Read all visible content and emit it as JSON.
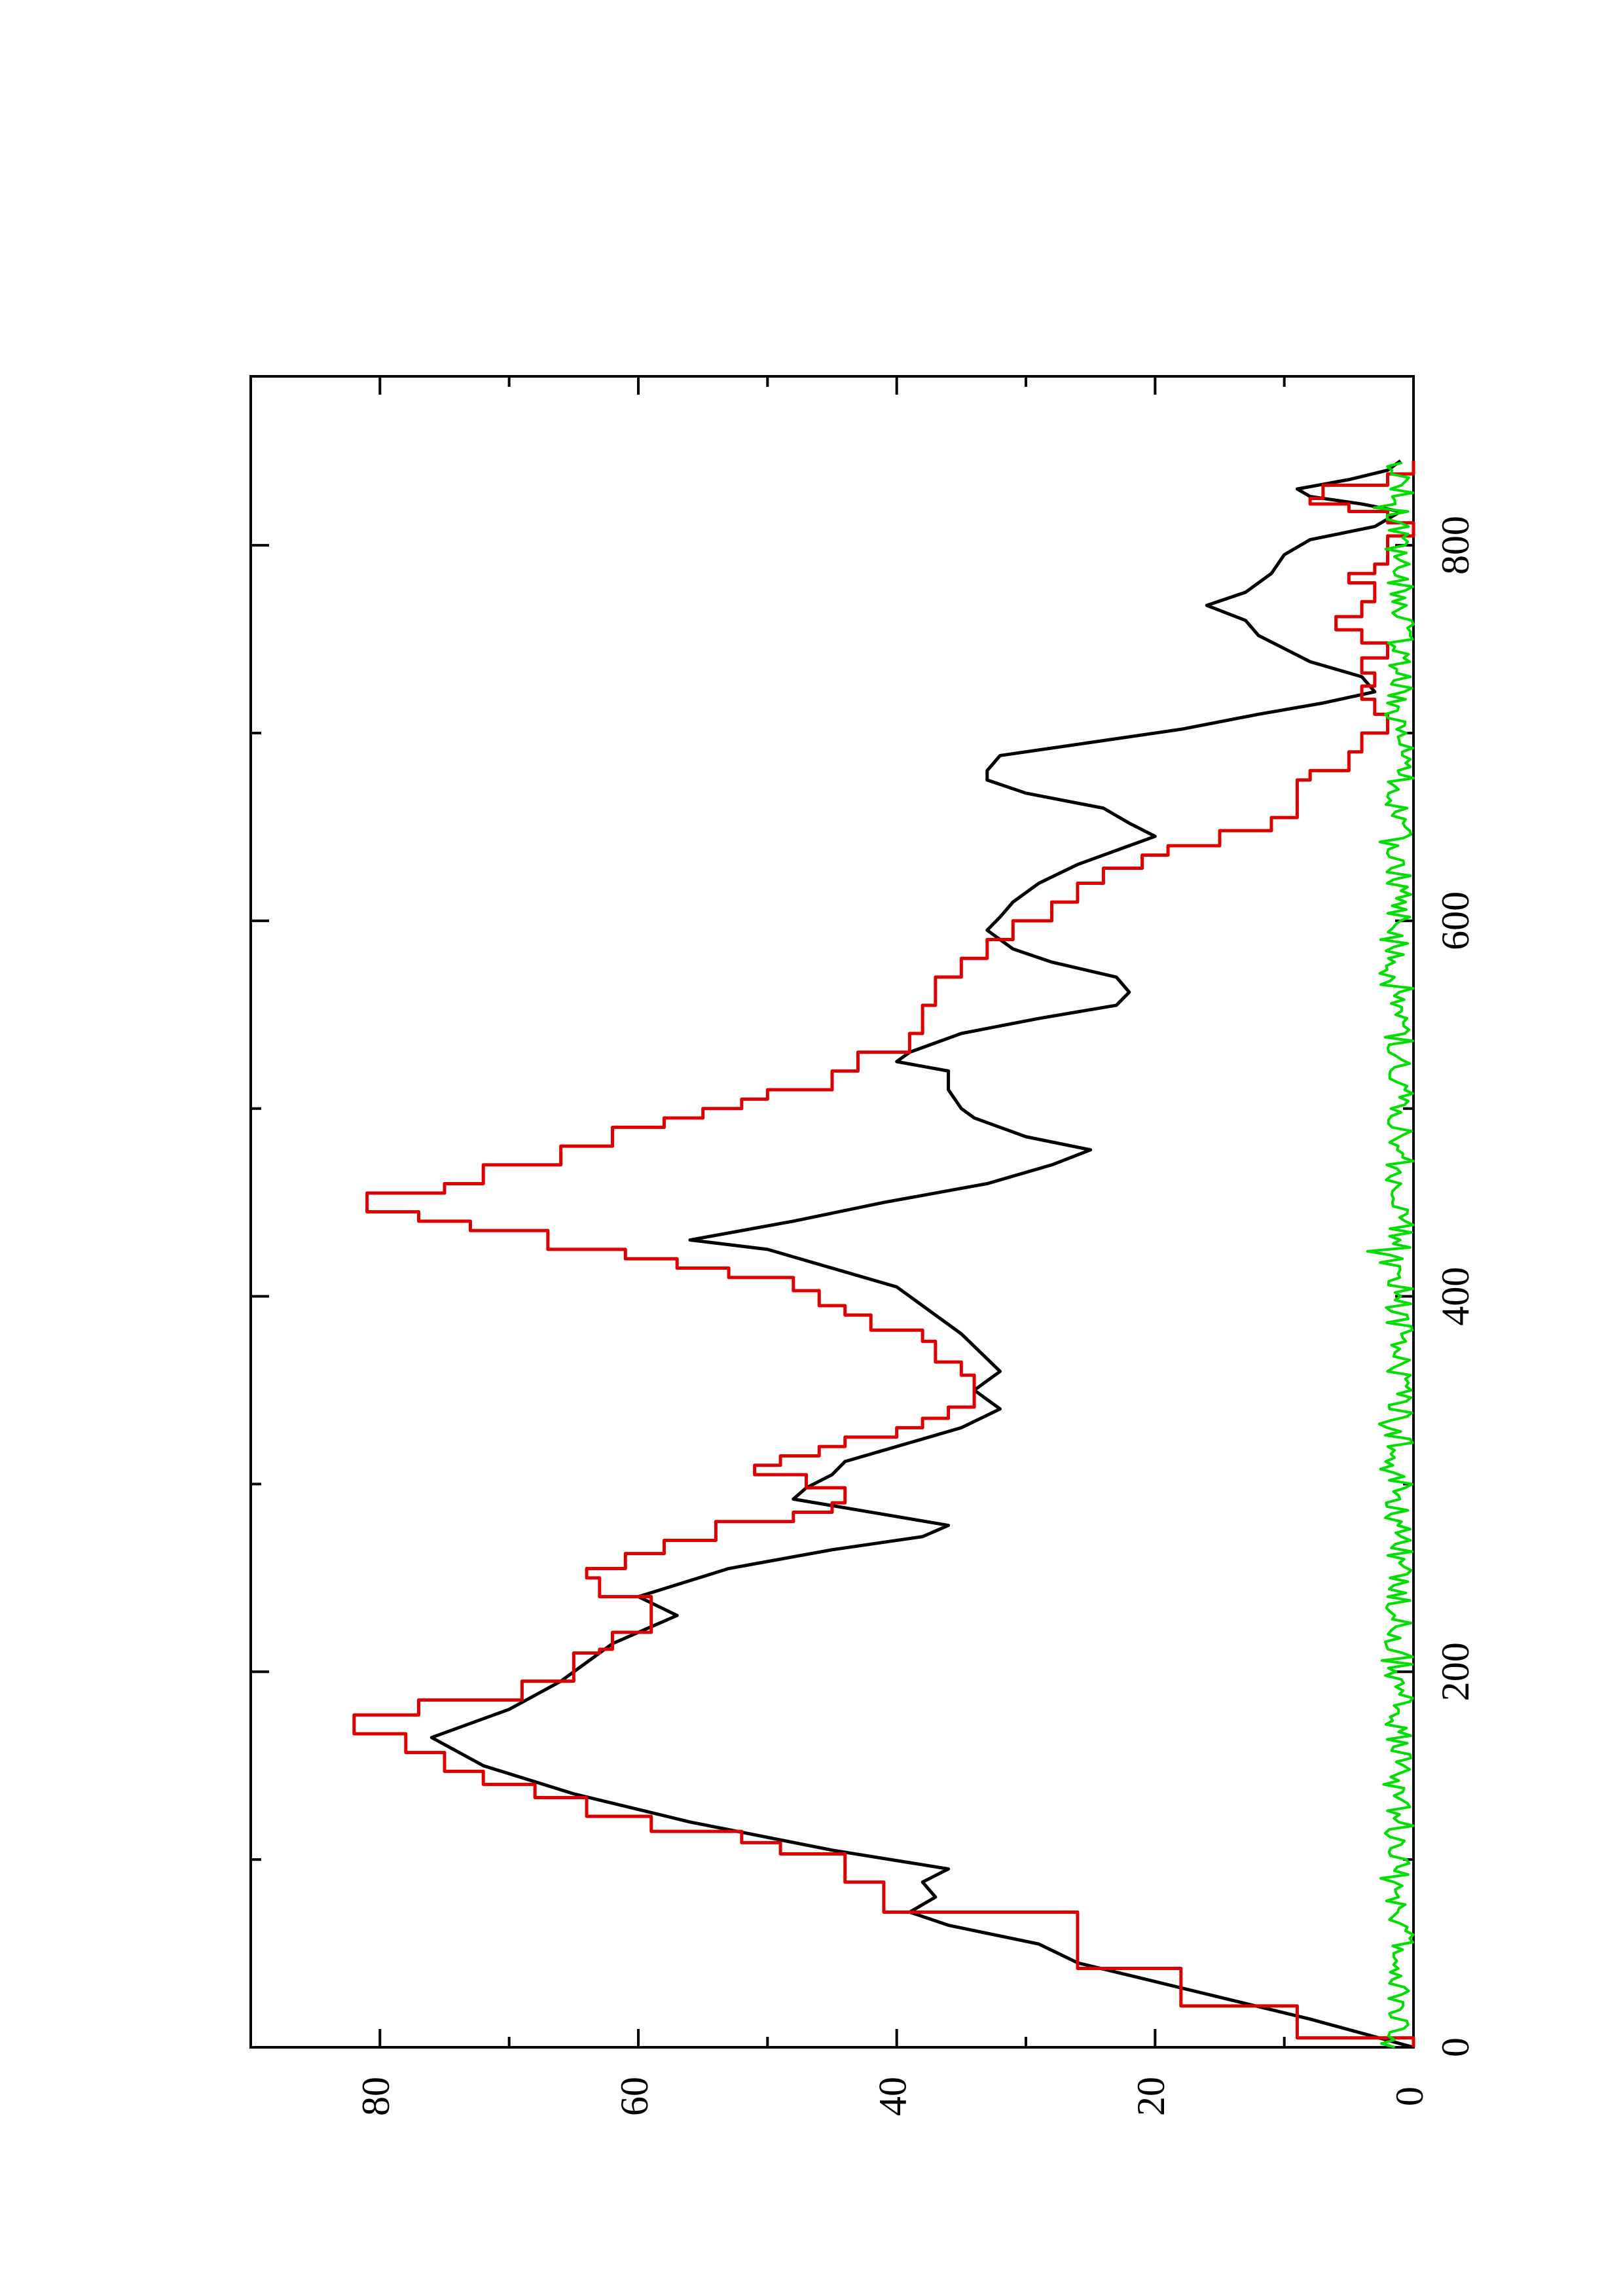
{
  "chart_data": {
    "type": "line",
    "xlabel": "",
    "ylabel": "",
    "xlim": [
      0,
      890
    ],
    "ylim": [
      0,
      90
    ],
    "xticks": [
      0,
      200,
      400,
      600,
      800
    ],
    "yticks": [
      0,
      20,
      40,
      60,
      80
    ],
    "xtick_labels": [
      "0",
      "200",
      "400",
      "600",
      "800"
    ],
    "ytick_labels": [
      "0",
      "20",
      "40",
      "60",
      "80"
    ],
    "grid": false,
    "legend": "none",
    "orientation": "rotated 90° counter-clockwise on the page",
    "colors": {
      "series_1": "#000000",
      "series_2": "#dd0000",
      "series_3": "#00dd00"
    },
    "series": [
      {
        "style": "smooth",
        "color": "#000000",
        "points": [
          [
            0,
            0
          ],
          [
            15,
            8
          ],
          [
            25,
            14
          ],
          [
            35,
            20
          ],
          [
            45,
            26
          ],
          [
            55,
            29
          ],
          [
            65,
            36
          ],
          [
            72,
            39
          ],
          [
            80,
            37
          ],
          [
            88,
            38
          ],
          [
            95,
            36
          ],
          [
            105,
            45
          ],
          [
            120,
            56
          ],
          [
            135,
            65
          ],
          [
            150,
            72
          ],
          [
            165,
            76
          ],
          [
            180,
            70
          ],
          [
            195,
            66
          ],
          [
            205,
            64
          ],
          [
            215,
            62
          ],
          [
            230,
            57
          ],
          [
            240,
            60
          ],
          [
            255,
            53
          ],
          [
            265,
            45
          ],
          [
            272,
            38
          ],
          [
            278,
            36
          ],
          [
            285,
            42
          ],
          [
            292,
            48
          ],
          [
            298,
            47
          ],
          [
            305,
            45
          ],
          [
            312,
            44
          ],
          [
            320,
            40
          ],
          [
            330,
            35
          ],
          [
            340,
            32
          ],
          [
            350,
            34
          ],
          [
            360,
            32
          ],
          [
            380,
            35
          ],
          [
            395,
            38
          ],
          [
            405,
            40
          ],
          [
            415,
            45
          ],
          [
            425,
            50
          ],
          [
            430,
            56
          ],
          [
            440,
            48
          ],
          [
            450,
            41
          ],
          [
            460,
            33
          ],
          [
            470,
            28
          ],
          [
            478,
            25
          ],
          [
            485,
            30
          ],
          [
            495,
            34
          ],
          [
            500,
            35
          ],
          [
            510,
            36
          ],
          [
            520,
            36
          ],
          [
            525,
            40
          ],
          [
            530,
            39
          ],
          [
            540,
            35
          ],
          [
            548,
            29
          ],
          [
            555,
            23
          ],
          [
            562,
            22
          ],
          [
            570,
            23
          ],
          [
            578,
            28
          ],
          [
            585,
            31
          ],
          [
            595,
            33
          ],
          [
            602,
            32
          ],
          [
            610,
            31
          ],
          [
            620,
            29
          ],
          [
            630,
            26
          ],
          [
            640,
            22
          ],
          [
            645,
            20
          ],
          [
            652,
            22
          ],
          [
            660,
            24
          ],
          [
            668,
            30
          ],
          [
            675,
            33
          ],
          [
            680,
            33
          ],
          [
            688,
            32
          ],
          [
            695,
            25
          ],
          [
            702,
            18
          ],
          [
            710,
            12
          ],
          [
            716,
            7
          ],
          [
            722,
            3
          ],
          [
            730,
            4
          ],
          [
            738,
            8
          ],
          [
            745,
            10
          ],
          [
            752,
            12
          ],
          [
            760,
            13
          ],
          [
            768,
            16
          ],
          [
            775,
            13
          ],
          [
            785,
            11
          ],
          [
            795,
            10
          ],
          [
            803,
            8
          ],
          [
            810,
            3
          ],
          [
            818,
            1
          ],
          [
            822,
            4
          ],
          [
            826,
            8
          ],
          [
            830,
            9
          ],
          [
            835,
            5
          ],
          [
            840,
            2
          ],
          [
            845,
            1
          ]
        ]
      },
      {
        "style": "step",
        "color": "#dd0000",
        "points": [
          [
            0,
            0
          ],
          [
            5,
            9
          ],
          [
            18,
            9
          ],
          [
            22,
            18
          ],
          [
            37,
            18
          ],
          [
            42,
            26
          ],
          [
            62,
            26
          ],
          [
            72,
            41
          ],
          [
            78,
            41
          ],
          [
            88,
            44
          ],
          [
            96,
            44
          ],
          [
            103,
            49
          ],
          [
            109,
            52
          ],
          [
            115,
            59
          ],
          [
            123,
            64
          ],
          [
            133,
            68
          ],
          [
            140,
            72
          ],
          [
            147,
            75
          ],
          [
            152,
            75
          ],
          [
            157,
            78
          ],
          [
            160,
            78
          ],
          [
            167,
            82
          ],
          [
            177,
            77
          ],
          [
            185,
            69
          ],
          [
            195,
            65
          ],
          [
            210,
            63
          ],
          [
            212,
            62
          ],
          [
            221,
            59
          ],
          [
            231,
            59
          ],
          [
            240,
            63
          ],
          [
            250,
            64
          ],
          [
            255,
            61
          ],
          [
            263,
            58
          ],
          [
            270,
            54
          ],
          [
            280,
            48
          ],
          [
            285,
            45
          ],
          [
            290,
            44
          ],
          [
            298,
            47
          ],
          [
            305,
            51
          ],
          [
            310,
            49
          ],
          [
            315,
            46
          ],
          [
            320,
            44
          ],
          [
            325,
            40
          ],
          [
            330,
            38
          ],
          [
            335,
            36
          ],
          [
            341,
            34
          ],
          [
            350,
            34
          ],
          [
            358,
            35
          ],
          [
            365,
            37
          ],
          [
            370,
            37
          ],
          [
            376,
            38
          ],
          [
            382,
            42
          ],
          [
            390,
            44
          ],
          [
            395,
            46
          ],
          [
            403,
            48
          ],
          [
            410,
            53
          ],
          [
            415,
            57
          ],
          [
            420,
            61
          ],
          [
            425,
            67
          ],
          [
            435,
            73
          ],
          [
            440,
            77
          ],
          [
            445,
            81
          ],
          [
            455,
            75
          ],
          [
            460,
            72
          ],
          [
            470,
            66
          ],
          [
            480,
            62
          ],
          [
            490,
            58
          ],
          [
            495,
            55
          ],
          [
            500,
            52
          ],
          [
            505,
            50
          ],
          [
            510,
            45
          ],
          [
            520,
            43
          ],
          [
            530,
            39
          ],
          [
            540,
            38
          ],
          [
            548,
            38
          ],
          [
            555,
            37
          ],
          [
            562,
            37
          ],
          [
            570,
            35
          ],
          [
            580,
            33
          ],
          [
            590,
            31
          ],
          [
            600,
            28
          ],
          [
            610,
            26
          ],
          [
            620,
            24
          ],
          [
            628,
            21
          ],
          [
            635,
            19
          ],
          [
            640,
            15
          ],
          [
            648,
            11
          ],
          [
            655,
            9
          ],
          [
            660,
            9
          ],
          [
            670,
            9
          ],
          [
            675,
            8
          ],
          [
            680,
            5
          ],
          [
            690,
            4
          ],
          [
            700,
            2
          ],
          [
            710,
            3
          ],
          [
            718,
            4
          ],
          [
            725,
            3
          ],
          [
            732,
            4
          ],
          [
            740,
            2
          ],
          [
            748,
            4
          ],
          [
            755,
            6
          ],
          [
            762,
            4
          ],
          [
            770,
            3
          ],
          [
            780,
            5
          ],
          [
            785,
            3
          ],
          [
            790,
            2
          ],
          [
            805,
            0
          ],
          [
            812,
            2
          ],
          [
            818,
            5
          ],
          [
            822,
            8
          ],
          [
            825,
            7
          ],
          [
            832,
            2
          ],
          [
            838,
            0
          ],
          [
            845,
            0
          ]
        ]
      },
      {
        "style": "noise",
        "color": "#00dd00",
        "points": []
      }
    ]
  }
}
